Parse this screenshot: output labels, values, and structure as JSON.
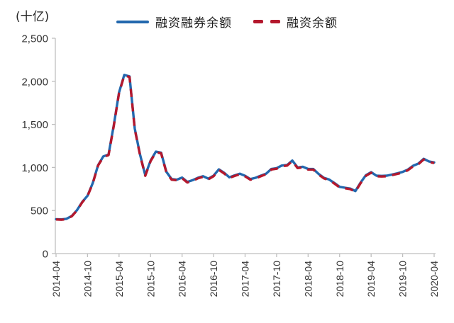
{
  "accent_colors": {
    "blue": "#2368ae",
    "red": "#b4182d",
    "axis": "#bfbfbf",
    "tick_text": "#333333"
  },
  "chart_data": {
    "type": "line",
    "title": "",
    "unit": "(十亿)",
    "xlabel": "",
    "ylabel": "(十亿)",
    "ylim": [
      0,
      2500
    ],
    "grid": false,
    "legend_position": "top",
    "yticks": [
      {
        "value": 0,
        "label": "0"
      },
      {
        "value": 500,
        "label": "500"
      },
      {
        "value": 1000,
        "label": "1,000"
      },
      {
        "value": 1500,
        "label": "1,500"
      },
      {
        "value": 2000,
        "label": "2,000"
      },
      {
        "value": 2500,
        "label": "2,500"
      }
    ],
    "xtick_labels": [
      "2014-04",
      "2014-10",
      "2015-04",
      "2015-10",
      "2016-04",
      "2016-10",
      "2017-04",
      "2017-10",
      "2018-04",
      "2018-10",
      "2019-04",
      "2019-10",
      "2020-04"
    ],
    "xtick_every": 6,
    "x": [
      "2014-04",
      "2014-05",
      "2014-06",
      "2014-07",
      "2014-08",
      "2014-09",
      "2014-10",
      "2014-11",
      "2014-12",
      "2015-01",
      "2015-02",
      "2015-03",
      "2015-04",
      "2015-05",
      "2015-06",
      "2015-07",
      "2015-08",
      "2015-09",
      "2015-10",
      "2015-11",
      "2015-12",
      "2016-01",
      "2016-02",
      "2016-03",
      "2016-04",
      "2016-05",
      "2016-06",
      "2016-07",
      "2016-08",
      "2016-09",
      "2016-10",
      "2016-11",
      "2016-12",
      "2017-01",
      "2017-02",
      "2017-03",
      "2017-04",
      "2017-05",
      "2017-06",
      "2017-07",
      "2017-08",
      "2017-09",
      "2017-10",
      "2017-11",
      "2017-12",
      "2018-01",
      "2018-02",
      "2018-03",
      "2018-04",
      "2018-05",
      "2018-06",
      "2018-07",
      "2018-08",
      "2018-09",
      "2018-10",
      "2018-11",
      "2018-12",
      "2019-01",
      "2019-02",
      "2019-03",
      "2019-04",
      "2019-05",
      "2019-06",
      "2019-07",
      "2019-08",
      "2019-09",
      "2019-10",
      "2019-11",
      "2019-12",
      "2020-01",
      "2020-02",
      "2020-03",
      "2020-04"
    ],
    "series": [
      {
        "name": "融资融券余额",
        "color": "#2368ae",
        "style": "solid",
        "values": [
          400,
          397,
          404,
          437,
          505,
          600,
          672,
          820,
          1025,
          1128,
          1150,
          1490,
          1870,
          2075,
          2057,
          1450,
          1150,
          910,
          1080,
          1183,
          1172,
          950,
          865,
          858,
          882,
          832,
          852,
          880,
          898,
          870,
          905,
          978,
          938,
          886,
          908,
          928,
          903,
          865,
          880,
          905,
          928,
          983,
          992,
          1022,
          1028,
          1080,
          1000,
          1008,
          983,
          982,
          925,
          880,
          860,
          820,
          775,
          765,
          755,
          726,
          825,
          910,
          945,
          905,
          902,
          905,
          918,
          932,
          948,
          975,
          1020,
          1045,
          1100,
          1070,
          1058
        ]
      },
      {
        "name": "融资余额",
        "color": "#b4182d",
        "style": "dashed",
        "values": [
          396,
          393,
          400,
          433,
          501,
          596,
          668,
          816,
          1021,
          1121,
          1143,
          1483,
          1863,
          2068,
          2050,
          1443,
          1143,
          903,
          1073,
          1176,
          1165,
          943,
          858,
          851,
          875,
          825,
          845,
          873,
          891,
          863,
          898,
          971,
          931,
          879,
          901,
          921,
          896,
          858,
          873,
          898,
          921,
          976,
          985,
          1015,
          1021,
          1073,
          993,
          1001,
          976,
          975,
          918,
          873,
          853,
          813,
          768,
          758,
          748,
          719,
          818,
          903,
          938,
          898,
          895,
          898,
          911,
          925,
          941,
          968,
          1013,
          1038,
          1093,
          1063,
          1051
        ]
      }
    ]
  }
}
